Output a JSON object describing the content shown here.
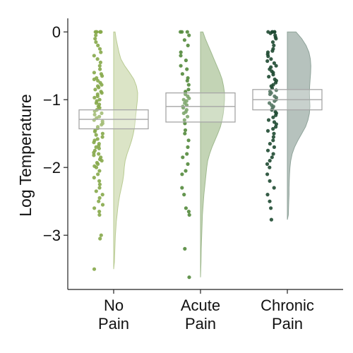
{
  "chart_data": {
    "type": "raincloud",
    "title": "",
    "ylabel": "Log Temperature",
    "xlabel": "",
    "ylim": [
      -3.8,
      0.2
    ],
    "yticks": [
      0,
      -1,
      -2,
      -3
    ],
    "ytick_labels": [
      "0",
      "−1",
      "−2",
      "−3"
    ],
    "grid": false,
    "legend": "none",
    "categories": [
      {
        "name_lines": [
          "No",
          "Pain"
        ],
        "color": "#86a94a",
        "cloud_color": "#dbe4c6",
        "cloud_edge": "#b9cb93",
        "box": {
          "q1": -1.43,
          "median": -1.29,
          "q3": -1.15
        },
        "density": [
          [
            0,
            0.06
          ],
          [
            -0.1,
            0.1
          ],
          [
            -0.2,
            0.16
          ],
          [
            -0.3,
            0.22
          ],
          [
            -0.4,
            0.3
          ],
          [
            -0.5,
            0.46
          ],
          [
            -0.6,
            0.66
          ],
          [
            -0.7,
            0.84
          ],
          [
            -0.8,
            0.95
          ],
          [
            -0.9,
            1.0
          ],
          [
            -1.0,
            0.99
          ],
          [
            -1.1,
            0.96
          ],
          [
            -1.2,
            0.93
          ],
          [
            -1.3,
            0.9
          ],
          [
            -1.4,
            0.87
          ],
          [
            -1.5,
            0.82
          ],
          [
            -1.6,
            0.75
          ],
          [
            -1.7,
            0.66
          ],
          [
            -1.8,
            0.56
          ],
          [
            -1.9,
            0.48
          ],
          [
            -2.0,
            0.44
          ],
          [
            -2.1,
            0.42
          ],
          [
            -2.2,
            0.38
          ],
          [
            -2.3,
            0.32
          ],
          [
            -2.4,
            0.26
          ],
          [
            -2.5,
            0.21
          ],
          [
            -2.6,
            0.17
          ],
          [
            -2.7,
            0.14
          ],
          [
            -2.8,
            0.11
          ],
          [
            -2.9,
            0.09
          ],
          [
            -3.0,
            0.07
          ],
          [
            -3.2,
            0.05
          ],
          [
            -3.4,
            0.03
          ],
          [
            -3.5,
            0.0
          ]
        ],
        "points": [
          0,
          0,
          0,
          0,
          0,
          0,
          -0.05,
          -0.1,
          -0.15,
          -0.2,
          -0.25,
          -0.3,
          -0.35,
          -0.4,
          -0.45,
          -0.5,
          -0.55,
          -0.6,
          -0.62,
          -0.65,
          -0.68,
          -0.7,
          -0.72,
          -0.75,
          -0.78,
          -0.8,
          -0.82,
          -0.85,
          -0.88,
          -0.9,
          -0.92,
          -0.95,
          -0.97,
          -1.0,
          -1.02,
          -1.05,
          -1.07,
          -1.1,
          -1.12,
          -1.15,
          -1.17,
          -1.2,
          -1.22,
          -1.25,
          -1.27,
          -1.3,
          -1.32,
          -1.35,
          -1.37,
          -1.4,
          -1.42,
          -1.45,
          -1.47,
          -1.5,
          -1.52,
          -1.55,
          -1.58,
          -1.6,
          -1.63,
          -1.65,
          -1.68,
          -1.7,
          -1.72,
          -1.75,
          -1.78,
          -1.8,
          -1.82,
          -1.85,
          -1.88,
          -1.9,
          -1.93,
          -1.95,
          -1.98,
          -2.0,
          -2.05,
          -2.1,
          -2.15,
          -2.2,
          -2.25,
          -2.3,
          -2.35,
          -2.4,
          -2.45,
          -2.5,
          -2.55,
          -2.6,
          -2.65,
          -2.7,
          -3.0,
          -3.05,
          -3.5
        ]
      },
      {
        "name_lines": [
          "Acute",
          "Pain"
        ],
        "color": "#538a3c",
        "cloud_color": "#c3d4b5",
        "cloud_edge": "#9fb98e",
        "box": {
          "q1": -1.33,
          "median": -1.1,
          "q3": -0.9
        },
        "density": [
          [
            0,
            0.1
          ],
          [
            -0.1,
            0.2
          ],
          [
            -0.2,
            0.32
          ],
          [
            -0.3,
            0.44
          ],
          [
            -0.4,
            0.56
          ],
          [
            -0.5,
            0.68
          ],
          [
            -0.6,
            0.8
          ],
          [
            -0.7,
            0.9
          ],
          [
            -0.8,
            0.96
          ],
          [
            -0.9,
            1.0
          ],
          [
            -1.0,
            1.0
          ],
          [
            -1.1,
            0.98
          ],
          [
            -1.2,
            0.95
          ],
          [
            -1.3,
            0.9
          ],
          [
            -1.4,
            0.83
          ],
          [
            -1.5,
            0.72
          ],
          [
            -1.6,
            0.6
          ],
          [
            -1.7,
            0.48
          ],
          [
            -1.8,
            0.38
          ],
          [
            -1.9,
            0.3
          ],
          [
            -2.0,
            0.26
          ],
          [
            -2.1,
            0.23
          ],
          [
            -2.2,
            0.2
          ],
          [
            -2.3,
            0.17
          ],
          [
            -2.4,
            0.14
          ],
          [
            -2.5,
            0.12
          ],
          [
            -2.6,
            0.1
          ],
          [
            -2.7,
            0.08
          ],
          [
            -2.8,
            0.07
          ],
          [
            -3.0,
            0.05
          ],
          [
            -3.2,
            0.03
          ],
          [
            -3.4,
            0.02
          ],
          [
            -3.62,
            0.0
          ]
        ],
        "points": [
          0,
          0,
          0,
          -0.05,
          -0.12,
          -0.2,
          -0.3,
          -0.35,
          -0.42,
          -0.5,
          -0.55,
          -0.62,
          -0.68,
          -0.72,
          -0.78,
          -0.85,
          -0.88,
          -0.92,
          -0.95,
          -0.98,
          -1.0,
          -1.02,
          -1.05,
          -1.08,
          -1.1,
          -1.12,
          -1.15,
          -1.18,
          -1.2,
          -1.25,
          -1.3,
          -1.35,
          -1.45,
          -1.5,
          -1.6,
          -1.7,
          -1.8,
          -1.85,
          -1.95,
          -2.05,
          -2.1,
          -2.3,
          -2.4,
          -2.6,
          -2.65,
          -2.7,
          -3.2,
          -3.62
        ]
      },
      {
        "name_lines": [
          "Chronic",
          "Pain"
        ],
        "color": "#1f4a32",
        "cloud_color": "#b6c2bd",
        "cloud_edge": "#8fa39a",
        "box": {
          "q1": -1.15,
          "median": -1.0,
          "q3": -0.85
        },
        "density": [
          [
            0,
            0.36
          ],
          [
            -0.1,
            0.6
          ],
          [
            -0.2,
            0.78
          ],
          [
            -0.3,
            0.9
          ],
          [
            -0.4,
            0.96
          ],
          [
            -0.5,
            0.98
          ],
          [
            -0.6,
            0.97
          ],
          [
            -0.7,
            0.95
          ],
          [
            -0.8,
            0.93
          ],
          [
            -0.9,
            0.92
          ],
          [
            -1.0,
            0.93
          ],
          [
            -1.1,
            0.94
          ],
          [
            -1.2,
            0.92
          ],
          [
            -1.3,
            0.86
          ],
          [
            -1.4,
            0.76
          ],
          [
            -1.5,
            0.6
          ],
          [
            -1.6,
            0.44
          ],
          [
            -1.7,
            0.3
          ],
          [
            -1.8,
            0.2
          ],
          [
            -1.9,
            0.14
          ],
          [
            -2.0,
            0.11
          ],
          [
            -2.1,
            0.09
          ],
          [
            -2.2,
            0.08
          ],
          [
            -2.3,
            0.07
          ],
          [
            -2.4,
            0.07
          ],
          [
            -2.5,
            0.06
          ],
          [
            -2.6,
            0.05
          ],
          [
            -2.7,
            0.04
          ],
          [
            -2.77,
            0.0
          ]
        ],
        "points": [
          0,
          0,
          0,
          0,
          0,
          -0.02,
          -0.05,
          -0.08,
          -0.1,
          -0.15,
          -0.2,
          -0.25,
          -0.28,
          -0.3,
          -0.33,
          -0.36,
          -0.4,
          -0.43,
          -0.46,
          -0.5,
          -0.52,
          -0.55,
          -0.58,
          -0.6,
          -0.63,
          -0.66,
          -0.7,
          -0.72,
          -0.75,
          -0.78,
          -0.8,
          -0.83,
          -0.86,
          -0.88,
          -0.9,
          -0.92,
          -0.95,
          -0.97,
          -1.0,
          -1.02,
          -1.05,
          -1.08,
          -1.1,
          -1.12,
          -1.15,
          -1.18,
          -1.2,
          -1.23,
          -1.26,
          -1.3,
          -1.33,
          -1.36,
          -1.4,
          -1.43,
          -1.46,
          -1.5,
          -1.55,
          -1.6,
          -1.65,
          -1.7,
          -1.75,
          -1.8,
          -1.85,
          -1.9,
          -1.95,
          -2.0,
          -2.1,
          -2.2,
          -2.3,
          -2.4,
          -2.5,
          -2.6,
          -2.77
        ]
      }
    ]
  }
}
